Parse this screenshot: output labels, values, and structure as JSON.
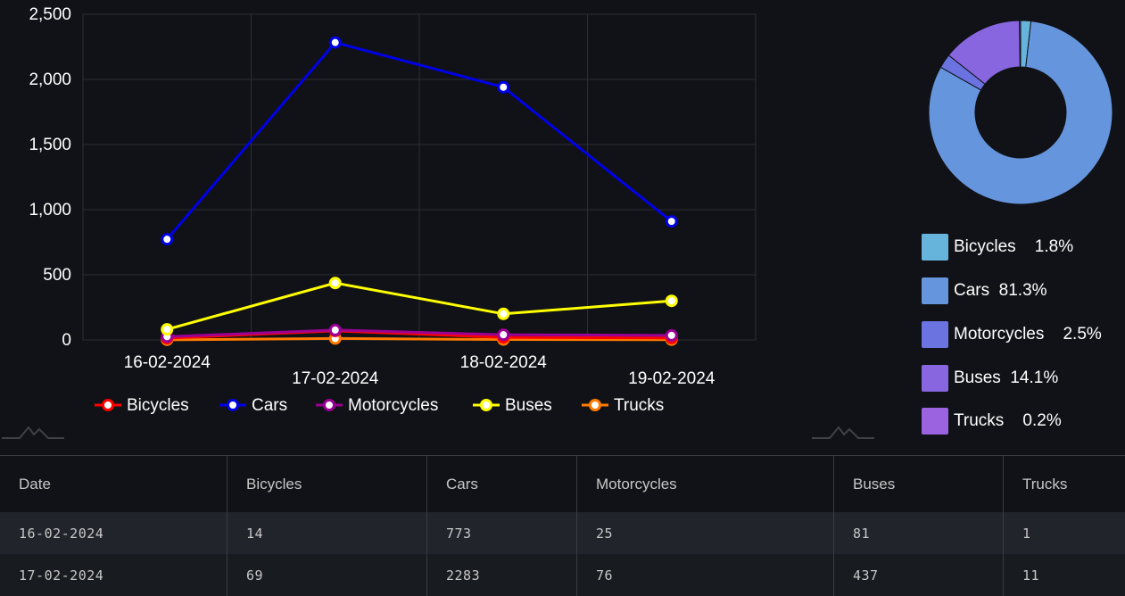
{
  "chart_data": [
    {
      "type": "line",
      "x": [
        "16-02-2024",
        "17-02-2024",
        "18-02-2024",
        "19-02-2024"
      ],
      "ylim": [
        0,
        2500
      ],
      "yticks": [
        "0",
        "500",
        "1,000",
        "1,500",
        "2,000",
        "2,500"
      ],
      "grid": true,
      "legend_position": "bottom",
      "series": [
        {
          "name": "Bicycles",
          "color": "#ff0000",
          "values": [
            14,
            69,
            20,
            15
          ]
        },
        {
          "name": "Cars",
          "color": "#0000e6",
          "values": [
            773,
            2283,
            1940,
            910
          ]
        },
        {
          "name": "Motorcycles",
          "color": "#9b0094",
          "values": [
            25,
            76,
            40,
            35
          ]
        },
        {
          "name": "Buses",
          "color": "#ffff00",
          "values": [
            81,
            437,
            200,
            300
          ]
        },
        {
          "name": "Trucks",
          "color": "#ff7a00",
          "values": [
            1,
            11,
            3,
            2
          ]
        }
      ]
    },
    {
      "type": "pie",
      "donut": true,
      "legend_position": "bottom",
      "labels": [
        "Bicycles",
        "Cars",
        "Motorcycles",
        "Buses",
        "Trucks"
      ],
      "label_text": [
        "Bicycles    1.8%",
        "Cars  81.3%",
        "Motorcycles    2.5%",
        "Buses  14.1%",
        "Trucks    0.2%"
      ],
      "values": [
        1.8,
        81.3,
        2.5,
        14.1,
        0.2
      ],
      "colors": [
        "#66b3dc",
        "#6595dc",
        "#6b73e0",
        "#8766e0",
        "#9c63e0"
      ]
    }
  ],
  "table": {
    "headers": [
      "Date",
      "Bicycles",
      "Cars",
      "Motorcycles",
      "Buses",
      "Trucks"
    ],
    "rows": [
      [
        "16-02-2024",
        "14",
        "773",
        "25",
        "81",
        "1"
      ],
      [
        "17-02-2024",
        "69",
        "2283",
        "76",
        "437",
        "11"
      ]
    ]
  }
}
